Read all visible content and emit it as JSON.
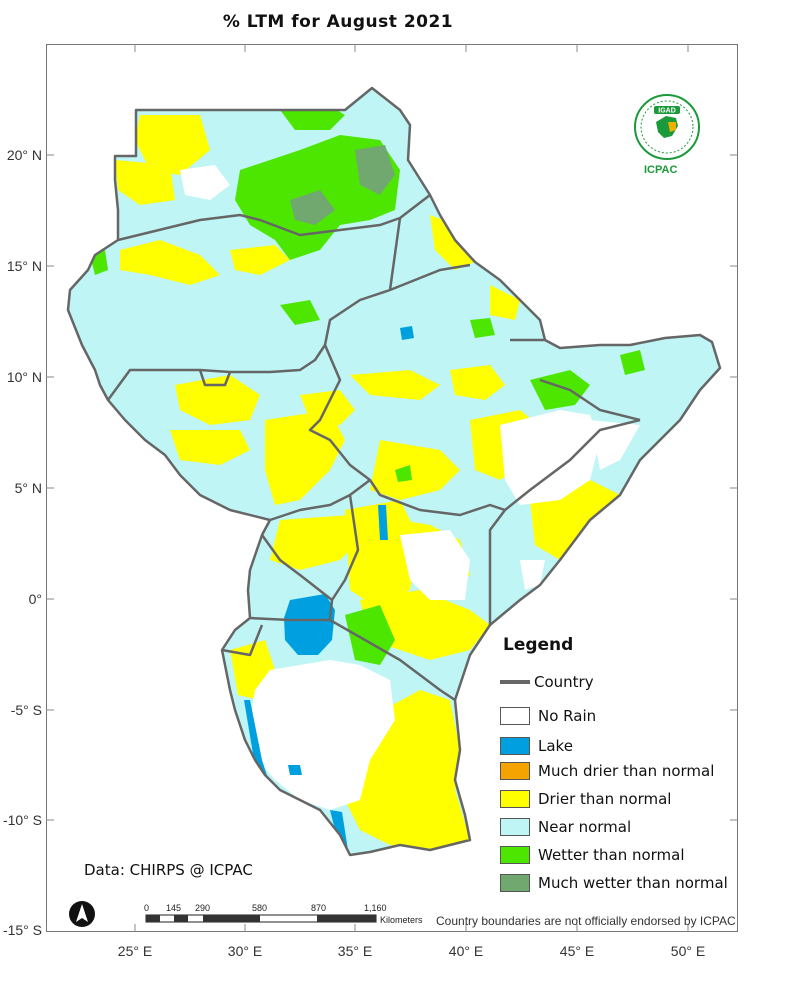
{
  "title": "% LTM for  August 2021",
  "latitude_ticks": [
    "20° N",
    "15° N",
    "10° N",
    "5° N",
    "0°",
    "-5° S",
    "-10° S",
    "-15° S"
  ],
  "longitude_ticks": [
    "25° E",
    "30° E",
    "35° E",
    "40° E",
    "45° E",
    "50° E"
  ],
  "legend": {
    "title": "Legend",
    "country_label": "Country",
    "country_color": "#666666",
    "items": [
      {
        "label": "No Rain",
        "color": "#ffffff"
      },
      {
        "label": "Lake",
        "color": "#00a0e0"
      },
      {
        "label": "Much drier than normal",
        "color": "#f5a300"
      },
      {
        "label": "Drier than normal",
        "color": "#ffff00"
      },
      {
        "label": "Near normal",
        "color": "#bff5f5"
      },
      {
        "label": "Wetter than normal",
        "color": "#4de600"
      },
      {
        "label": "Much wetter than normal",
        "color": "#70a870"
      }
    ]
  },
  "data_source": "Data: CHIRPS @ ICPAC",
  "scale_bar": {
    "ticks": [
      "0",
      "145",
      "290",
      "580",
      "870",
      "1,160"
    ],
    "unit": "Kilometers"
  },
  "disclaimer": "Country boundaries are not officially endorsed by ICPAC",
  "logo": {
    "name": "IGAD",
    "org": "ICPAC"
  }
}
